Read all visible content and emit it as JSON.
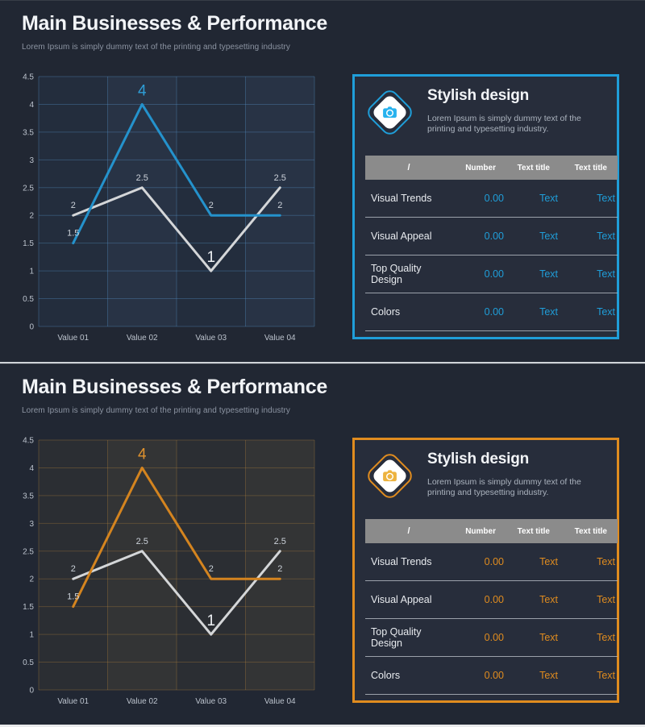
{
  "page": {
    "background": "#212733",
    "divider_color": "#cfd3d8",
    "bottom_strip_color": "#e9eaec"
  },
  "slides": [
    {
      "title": "Main Businesses & Performance",
      "subtitle": "Lorem Ipsum is simply dummy text of the printing and typesetting industry",
      "accent": "#1f9ed9",
      "icon_camera_color": "#27b2ee",
      "card": {
        "heading": "Stylish design",
        "description": "Lorem Ipsum is simply dummy text of the printing and typesetting industry.",
        "table": {
          "headers": [
            "/",
            "Number",
            "Text title",
            "Text title"
          ],
          "rows": [
            {
              "name": "Visual Trends",
              "number": "0.00",
              "text1": "Text",
              "text2": "Text"
            },
            {
              "name": "Visual Appeal",
              "number": "0.00",
              "text1": "Text",
              "text2": "Text"
            },
            {
              "name": "Top Quality Design",
              "number": "0.00",
              "text1": "Text",
              "text2": "Text"
            },
            {
              "name": "Colors",
              "number": "0.00",
              "text1": "Text",
              "text2": "Text"
            }
          ]
        }
      }
    },
    {
      "title": "Main Businesses & Performance",
      "subtitle": "Lorem Ipsum is simply dummy text of the printing and typesetting industry",
      "accent": "#e08c1f",
      "icon_camera_color": "#edb33f",
      "card": {
        "heading": "Stylish design",
        "description": "Lorem Ipsum is simply dummy text of the printing and typesetting industry.",
        "table": {
          "headers": [
            "/",
            "Number",
            "Text title",
            "Text title"
          ],
          "rows": [
            {
              "name": "Visual Trends",
              "number": "0.00",
              "text1": "Text",
              "text2": "Text"
            },
            {
              "name": "Visual Appeal",
              "number": "0.00",
              "text1": "Text",
              "text2": "Text"
            },
            {
              "name": "Top Quality Design",
              "number": "0.00",
              "text1": "Text",
              "text2": "Text"
            },
            {
              "name": "Colors",
              "number": "0.00",
              "text1": "Text",
              "text2": "Text"
            }
          ]
        }
      }
    }
  ],
  "chart_data": [
    {
      "type": "line",
      "categories": [
        "Value 01",
        "Value 02",
        "Value 03",
        "Value 04"
      ],
      "series": [
        {
          "name": "accent-series",
          "values": [
            1.5,
            4,
            2,
            2
          ],
          "color": "#2492cc",
          "emphasized_label_index": 1,
          "emphasized_color": "#2e9fd8"
        },
        {
          "name": "white-series",
          "values": [
            2,
            2.5,
            1,
            2.5
          ],
          "color": "#d4d6d8",
          "emphasized_label_index": 2,
          "emphasized_color": "#eef1f4"
        }
      ],
      "ylim": [
        0,
        4.5
      ],
      "ytick_step": 0.5,
      "grid": true,
      "legend": false,
      "data_labels": true,
      "grid_color": "rgba(85,145,200,0.35)",
      "plot_bg": "rgba(48,82,118,0.16)",
      "band_bg": "rgba(130,180,230,0.05)",
      "tick_color": "#bcc3cd",
      "label_color": "#cbd1d9"
    },
    {
      "type": "line",
      "categories": [
        "Value 01",
        "Value 02",
        "Value 03",
        "Value 04"
      ],
      "series": [
        {
          "name": "accent-series",
          "values": [
            1.5,
            4,
            2,
            2
          ],
          "color": "#d4841f",
          "emphasized_label_index": 1,
          "emphasized_color": "#e0922d"
        },
        {
          "name": "white-series",
          "values": [
            2,
            2.5,
            1,
            2.5
          ],
          "color": "#d4d6d8",
          "emphasized_label_index": 2,
          "emphasized_color": "#eef1f4"
        }
      ],
      "ylim": [
        0,
        4.5
      ],
      "ytick_step": 0.5,
      "grid": true,
      "legend": false,
      "data_labels": true,
      "grid_color": "rgba(190,135,60,0.30)",
      "plot_bg": "rgba(140,105,55,0.10)",
      "band_bg": "rgba(230,180,110,0.045)",
      "tick_color": "#bcc3cd",
      "label_color": "#cbd1d9"
    }
  ]
}
